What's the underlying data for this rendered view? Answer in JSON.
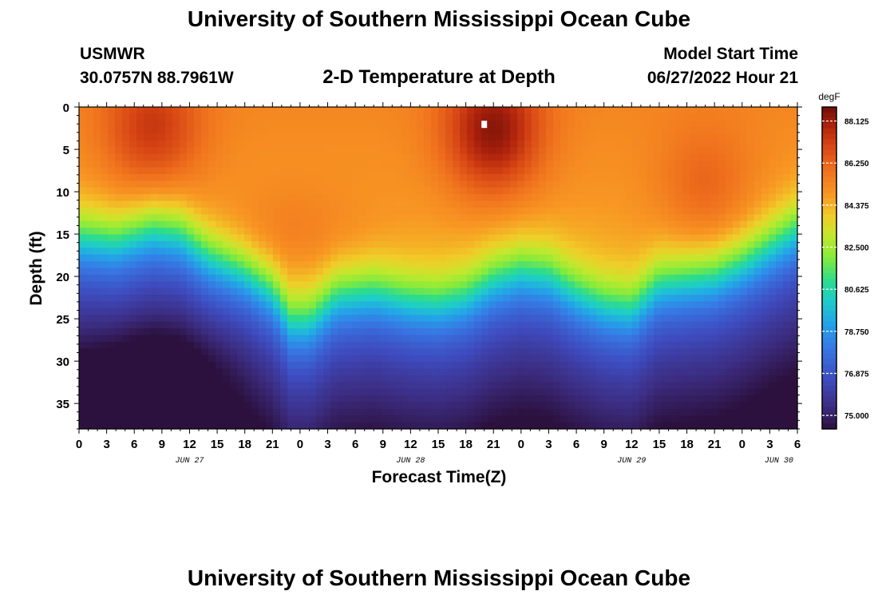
{
  "header": {
    "title": "University of Southern Mississippi Ocean Cube",
    "station_name": "USMWR",
    "station_coords": "30.0757N  88.7961W",
    "plot_title": "2-D Temperature at Depth",
    "model_start_label": "Model Start Time",
    "model_start_value": "06/27/2022 Hour 21"
  },
  "footer": {
    "title": "University of Southern Mississippi Ocean Cube"
  },
  "chart_data": {
    "type": "heatmap",
    "title": "2-D Temperature at Depth",
    "xlabel": "Forecast Time(Z)",
    "ylabel": "Depth (ft)",
    "x_range_hours": [
      0,
      78
    ],
    "ylim": [
      0,
      38
    ],
    "x_ticks": [
      "0",
      "3",
      "6",
      "9",
      "12",
      "15",
      "18",
      "21",
      "0",
      "3",
      "6",
      "9",
      "12",
      "15",
      "18",
      "21",
      "0",
      "3",
      "6",
      "9",
      "12",
      "15",
      "18",
      "21",
      "0",
      "3",
      "6"
    ],
    "x_tick_hours": [
      0,
      3,
      6,
      9,
      12,
      15,
      18,
      21,
      24,
      27,
      30,
      33,
      36,
      39,
      42,
      45,
      48,
      51,
      54,
      57,
      60,
      63,
      66,
      69,
      72,
      75,
      78
    ],
    "date_labels": [
      "JUN 27",
      "JUN 28",
      "JUN 29",
      "JUN 30"
    ],
    "date_label_hours": [
      12,
      36,
      60,
      76
    ],
    "y_ticks": [
      0,
      5,
      10,
      15,
      20,
      25,
      30,
      35
    ],
    "y_tick_labels": [
      "0",
      "5",
      "10",
      "15",
      "20",
      "25",
      "30",
      "35"
    ],
    "colorbar": {
      "unit": "degF",
      "min": 74.4,
      "max": 88.75,
      "ticks": [
        88.125,
        86.25,
        84.375,
        82.5,
        80.625,
        78.75,
        76.875,
        75.0
      ],
      "tick_labels": [
        "88.125",
        "86.250",
        "84.375",
        "82.500",
        "80.625",
        "78.750",
        "76.875",
        "75.000"
      ]
    },
    "thermocline_depth_ft_by_hour": [
      [
        0,
        15
      ],
      [
        4,
        15.5
      ],
      [
        8,
        14
      ],
      [
        11,
        14.5
      ],
      [
        14,
        17
      ],
      [
        18,
        19
      ],
      [
        21,
        21.5
      ],
      [
        23,
        25
      ],
      [
        25,
        25
      ],
      [
        28,
        22
      ],
      [
        32,
        21.5
      ],
      [
        36,
        22.5
      ],
      [
        39,
        22.8
      ],
      [
        42,
        22
      ],
      [
        45,
        20
      ],
      [
        48,
        19
      ],
      [
        51,
        19.5
      ],
      [
        54,
        21.5
      ],
      [
        57,
        23
      ],
      [
        60,
        23.5
      ],
      [
        63,
        20.5
      ],
      [
        66,
        20
      ],
      [
        69,
        19.5
      ],
      [
        72,
        18
      ],
      [
        75,
        16
      ],
      [
        78,
        14
      ]
    ],
    "warm_cores": [
      {
        "hour": 8,
        "depth_ft": 3,
        "temp_degF": 87.5
      },
      {
        "hour": 45,
        "depth_ft": 3,
        "temp_degF": 88.5
      },
      {
        "hour": 68,
        "depth_ft": 10,
        "temp_degF": 86.6
      }
    ],
    "cold_bottom": [
      {
        "hour": 2,
        "depth_ft": 37,
        "temp_degF": 74.6
      },
      {
        "hour": 9,
        "depth_ft": 31,
        "temp_degF": 75.6
      }
    ],
    "marker": {
      "hour": 44,
      "depth_ft": 2
    }
  }
}
